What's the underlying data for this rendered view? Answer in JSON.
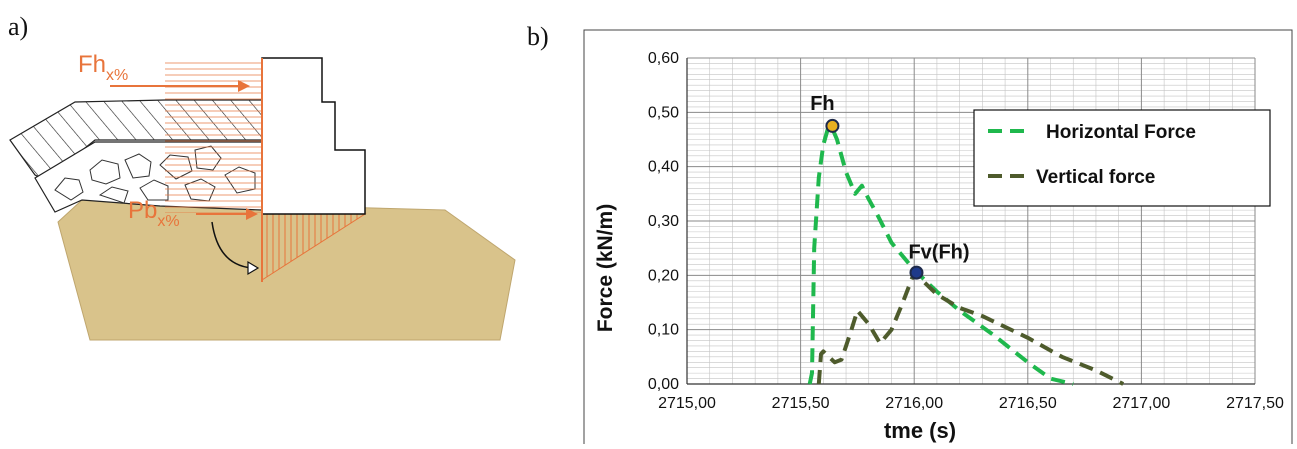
{
  "panel_a": {
    "label": "a)",
    "fh_label": "Fh",
    "fh_subscript": "x%",
    "pb_label": "Pb",
    "pb_subscript": "x%",
    "colors": {
      "force": "#e8743b",
      "sand": "#d9c38b",
      "wall": "#ffffff",
      "outline": "#111111"
    }
  },
  "panel_b": {
    "label": "b)"
  },
  "chart_data": {
    "type": "line",
    "xlabel": "tme (s)",
    "ylabel": "Force (kN/m)",
    "xlim": [
      2715.0,
      2717.5
    ],
    "ylim": [
      0.0,
      0.6
    ],
    "xticks": [
      "2715,00",
      "2715,50",
      "2716,00",
      "2716,50",
      "2717,00",
      "2717,50"
    ],
    "yticks": [
      "0,00",
      "0,10",
      "0,20",
      "0,30",
      "0,40",
      "0,50",
      "0,60"
    ],
    "grid": true,
    "legend_position": "top-right",
    "series": [
      {
        "name": "Horizontal Force",
        "color": "#1fb84d",
        "x": [
          2715.54,
          2715.55,
          2715.56,
          2715.58,
          2715.6,
          2715.62,
          2715.64,
          2715.66,
          2715.7,
          2715.74,
          2715.77,
          2715.8,
          2715.84,
          2715.9,
          2716.0,
          2716.05,
          2716.1,
          2716.2,
          2716.35,
          2716.5,
          2716.6,
          2716.7
        ],
        "y": [
          0.0,
          0.02,
          0.25,
          0.38,
          0.44,
          0.47,
          0.47,
          0.45,
          0.39,
          0.35,
          0.365,
          0.34,
          0.31,
          0.26,
          0.21,
          0.19,
          0.17,
          0.135,
          0.09,
          0.04,
          0.01,
          0.0
        ]
      },
      {
        "name": "Vertical force",
        "color": "#4e5b2c",
        "x": [
          2715.58,
          2715.59,
          2715.6,
          2715.65,
          2715.68,
          2715.72,
          2715.75,
          2715.8,
          2715.85,
          2715.9,
          2715.95,
          2716.0,
          2716.1,
          2716.2,
          2716.3,
          2716.4,
          2716.5,
          2716.65,
          2716.8,
          2716.92
        ],
        "y": [
          0.0,
          0.055,
          0.06,
          0.04,
          0.045,
          0.095,
          0.135,
          0.11,
          0.075,
          0.1,
          0.15,
          0.205,
          0.165,
          0.14,
          0.125,
          0.105,
          0.085,
          0.05,
          0.025,
          0.0
        ]
      }
    ],
    "annotations": [
      {
        "text": "Fh",
        "x": 2715.64,
        "y": 0.475,
        "marker_color": "#e8b020"
      },
      {
        "text": "Fv(Fh)",
        "x": 2716.01,
        "y": 0.205,
        "marker_color": "#1e3a8a"
      }
    ]
  }
}
